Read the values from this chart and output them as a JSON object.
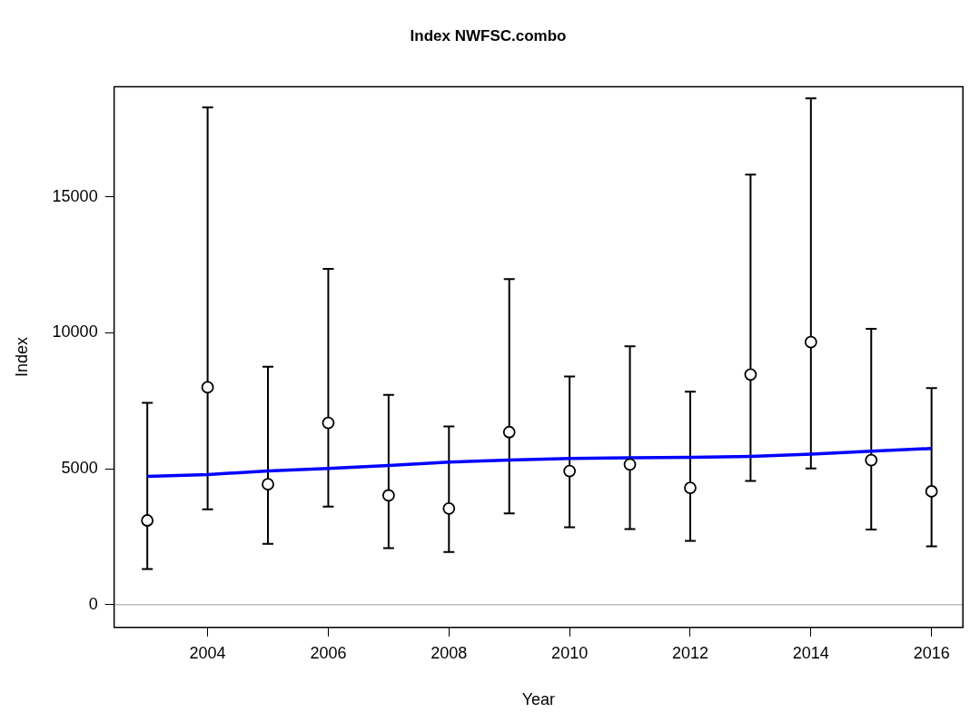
{
  "chart_data": {
    "type": "scatter",
    "title": "Index NWFSC.combo",
    "xlabel": "Year",
    "ylabel": "Index",
    "x": [
      2003,
      2004,
      2005,
      2006,
      2007,
      2008,
      2009,
      2010,
      2011,
      2012,
      2013,
      2014,
      2015,
      2016
    ],
    "series": [
      {
        "color": "#000000",
        "marker": "circle",
        "values": [
          3100,
          8000,
          4430,
          6690,
          4020,
          3540,
          6350,
          4920,
          5160,
          4300,
          8470,
          9660,
          5320,
          4170
        ],
        "errors": [
          [
            1310,
            7430
          ],
          [
            3510,
            18300
          ],
          [
            2240,
            8760
          ],
          [
            3610,
            12360
          ],
          [
            2080,
            7720
          ],
          [
            1940,
            6560
          ],
          [
            3360,
            11980
          ],
          [
            2850,
            8400
          ],
          [
            2780,
            9510
          ],
          [
            2350,
            7840
          ],
          [
            4550,
            15820
          ],
          [
            5010,
            18630
          ],
          [
            2770,
            10150
          ],
          [
            2150,
            7970
          ]
        ]
      },
      {
        "type": "line",
        "color": "#0000ff",
        "marker": "none",
        "line_style": "solid",
        "values": [
          4720,
          4790,
          4920,
          5010,
          5120,
          5250,
          5320,
          5380,
          5410,
          5420,
          5460,
          5540,
          5650,
          5750
        ]
      }
    ],
    "xlim": [
      2002.45,
      2016.52
    ],
    "xticks": [
      2004,
      2006,
      2008,
      2010,
      2012,
      2014,
      2016
    ],
    "ylim": [
      -836,
      19060
    ],
    "yticks": [
      0,
      5000,
      10000,
      15000
    ],
    "ref_lines": [
      {
        "axis": "y",
        "value": 0,
        "color": "#bebebe",
        "line_style": "solid"
      }
    ],
    "grid": false,
    "legend": false
  }
}
